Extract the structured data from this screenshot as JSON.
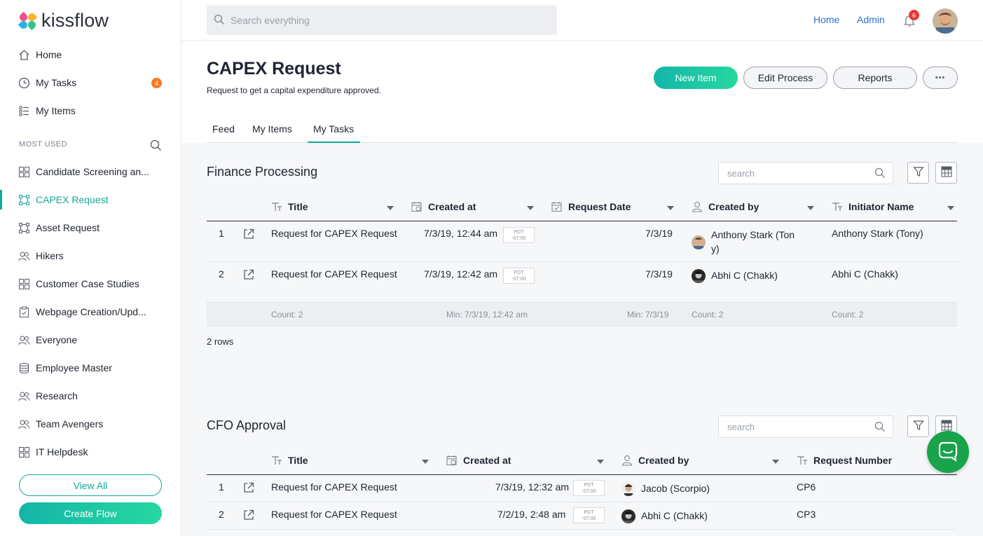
{
  "app": {
    "logo_text": "kissflow"
  },
  "sidebar": {
    "main_items": [
      {
        "label": "Home",
        "icon": "home-icon"
      },
      {
        "label": "My Tasks",
        "icon": "clock-icon",
        "badge": "4"
      },
      {
        "label": "My Items",
        "icon": "list-icon"
      }
    ],
    "section_label": "MOST USED",
    "flows": [
      {
        "label": "Candidate Screening an...",
        "icon": "grid-icon"
      },
      {
        "label": "CAPEX Request",
        "icon": "process-icon",
        "active": true
      },
      {
        "label": "Asset Request",
        "icon": "process-icon"
      },
      {
        "label": "Hikers",
        "icon": "people-icon"
      },
      {
        "label": "Customer Case Studies",
        "icon": "grid-icon"
      },
      {
        "label": "Webpage Creation/Upd...",
        "icon": "clipboard-icon"
      },
      {
        "label": "Everyone",
        "icon": "people-icon"
      },
      {
        "label": "Employee Master",
        "icon": "database-icon"
      },
      {
        "label": "Research",
        "icon": "people-icon"
      },
      {
        "label": "Team Avengers",
        "icon": "people-icon"
      },
      {
        "label": "IT Helpdesk",
        "icon": "grid-icon"
      }
    ],
    "view_all_label": "View All",
    "create_flow_label": "Create Flow"
  },
  "topbar": {
    "search_placeholder": "Search everything",
    "home_link": "Home",
    "admin_link": "Admin",
    "notification_count": "6"
  },
  "page": {
    "title": "CAPEX Request",
    "subtitle": "Request to get a capital expenditure approved.",
    "new_item_label": "New Item",
    "edit_process_label": "Edit Process",
    "reports_label": "Reports",
    "more_label": "•••",
    "tabs": [
      "Feed",
      "My Items",
      "My Tasks"
    ],
    "active_tab": "My Tasks"
  },
  "finance": {
    "title": "Finance Processing",
    "search_placeholder": "search",
    "columns": [
      "Title",
      "Created at",
      "Request Date",
      "Created by",
      "Initiator Name"
    ],
    "rows": [
      {
        "num": "1",
        "title": "Request for CAPEX Request",
        "created_at": "7/3/19, 12:44 am",
        "tz1": "PDT",
        "tz2": "-07:00",
        "request_date": "7/3/19",
        "created_by_1": "Anthony Stark (Ton",
        "created_by_2": "y)",
        "initiator": "Anthony Stark (Tony)"
      },
      {
        "num": "2",
        "title": "Request for CAPEX Request",
        "created_at": "7/3/19, 12:42 am",
        "tz1": "PDT",
        "tz2": "-07:00",
        "request_date": "7/3/19",
        "created_by_1": "Abhi C (Chakk)",
        "created_by_2": "",
        "initiator": "Abhi C (Chakk)"
      }
    ],
    "footer": {
      "count_title": "Count: 2",
      "min_created": "Min: 7/3/19, 12:42 am",
      "min_request": "Min: 7/3/19",
      "count_created_by": "Count: 2",
      "count_initiator": "Count: 2"
    },
    "rows_label": "2 rows"
  },
  "cfo": {
    "title": "CFO Approval",
    "search_placeholder": "search",
    "columns": [
      "Title",
      "Created at",
      "Created by",
      "Request Number"
    ],
    "rows": [
      {
        "num": "1",
        "title": "Request for CAPEX Request",
        "created_at": "7/3/19, 12:32 am",
        "tz1": "PDT",
        "tz2": "-07:00",
        "created_by": "Jacob (Scorpio)",
        "request_number": "CP6"
      },
      {
        "num": "2",
        "title": "Request for CAPEX Request",
        "created_at": "7/2/19, 2:48 am",
        "tz1": "PDT",
        "tz2": "-07:00",
        "created_by": "Abhi C (Chakk)",
        "request_number": "CP3"
      }
    ]
  },
  "colors": {
    "accent": "#13a89e",
    "link": "#2f6fd6",
    "badge_orange": "#f47b20",
    "badge_red": "#e53935",
    "chat_green": "#19a34a"
  }
}
